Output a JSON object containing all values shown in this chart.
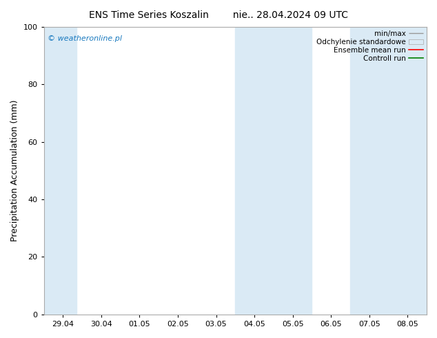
{
  "title_left": "ENS Time Series Koszalin",
  "title_right": "nie.. 28.04.2024 09 UTC",
  "ylabel": "Precipitation Accumulation (mm)",
  "ylim": [
    0,
    100
  ],
  "xtick_labels": [
    "29.04",
    "30.04",
    "01.05",
    "02.05",
    "03.05",
    "04.05",
    "05.05",
    "06.05",
    "07.05",
    "08.05"
  ],
  "ytick_positions": [
    0,
    20,
    40,
    60,
    80,
    100
  ],
  "background_color": "#ffffff",
  "plot_background": "#ffffff",
  "shaded_color": "#daeaf5",
  "shaded_bands": [
    {
      "xmin": -0.5,
      "xmax": -0.1
    },
    {
      "xmin": 4.4,
      "xmax": 5.6
    },
    {
      "xmin": 6.4,
      "xmax": 9.5
    }
  ],
  "watermark": "© weatheronline.pl",
  "watermark_color": "#1a7abf",
  "legend_labels": [
    "min/max",
    "Odchylenie standardowe",
    "Ensemble mean run",
    "Controll run"
  ],
  "legend_line_colors": [
    "#999999",
    "#cccccc",
    "#ff0000",
    "#008000"
  ],
  "title_fontsize": 10,
  "axis_label_fontsize": 9,
  "tick_fontsize": 8,
  "watermark_fontsize": 8,
  "legend_fontsize": 7.5
}
